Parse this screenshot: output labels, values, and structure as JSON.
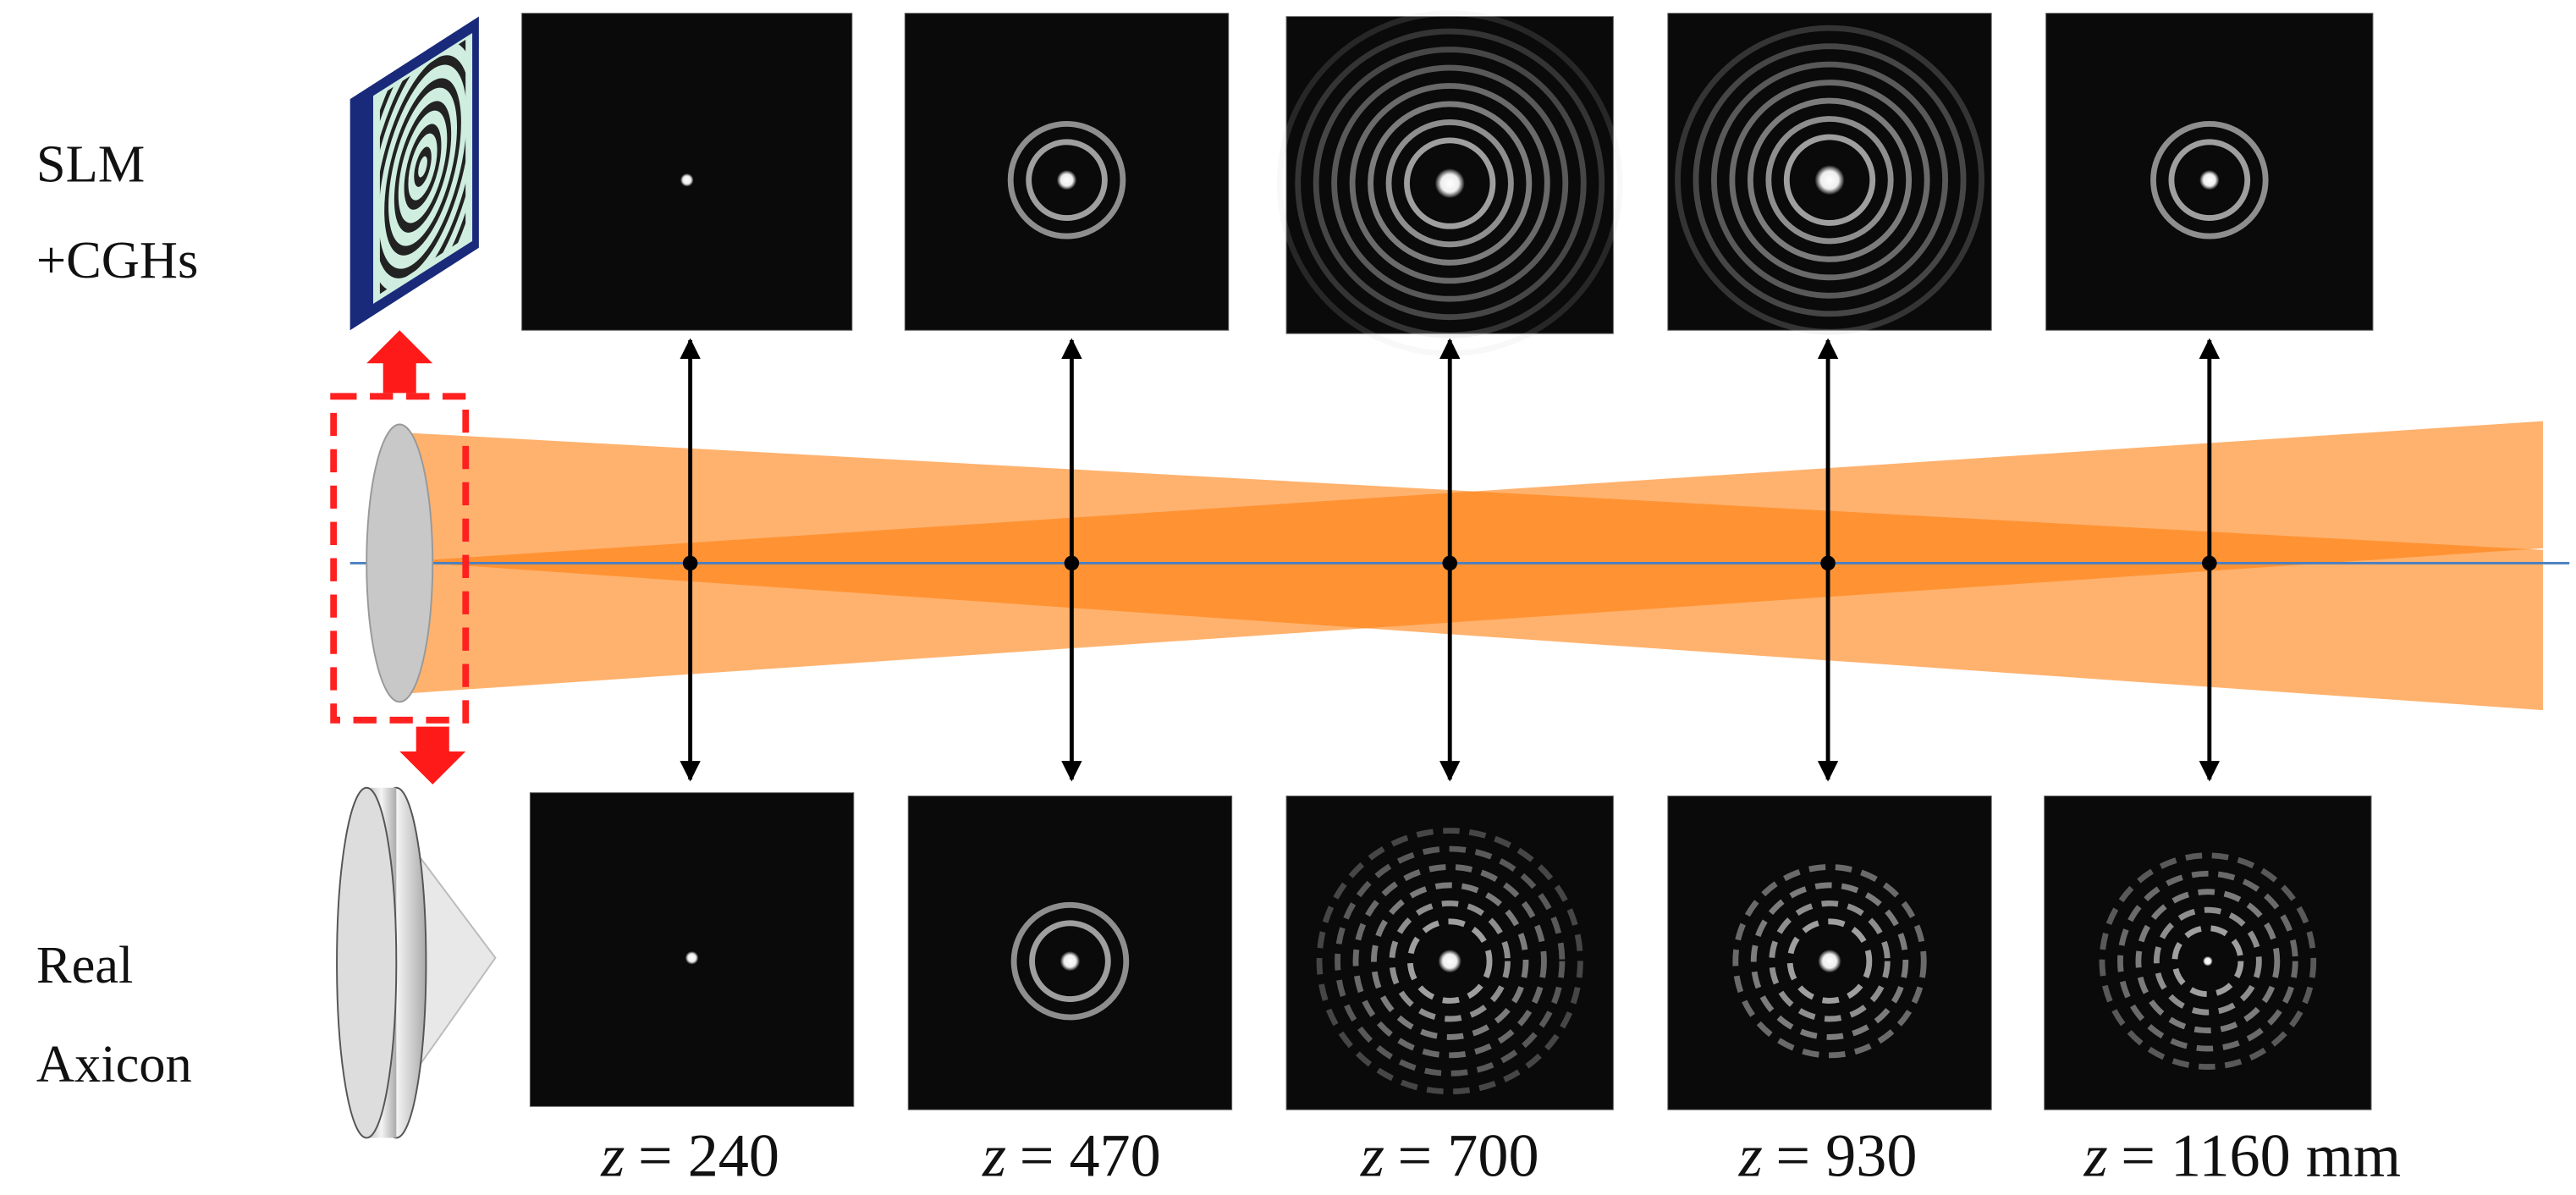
{
  "labels": {
    "slm": "SLM",
    "cgh": "+CGHs",
    "real": "Real",
    "axicon": "Axicon"
  },
  "positions": [
    {
      "variable": "z",
      "value": "= 240"
    },
    {
      "variable": "z",
      "value": "= 470"
    },
    {
      "variable": "z",
      "value": "= 700"
    },
    {
      "variable": "z",
      "value": "= 930"
    },
    {
      "variable": "z",
      "value": "= 1160 mm"
    }
  ]
}
